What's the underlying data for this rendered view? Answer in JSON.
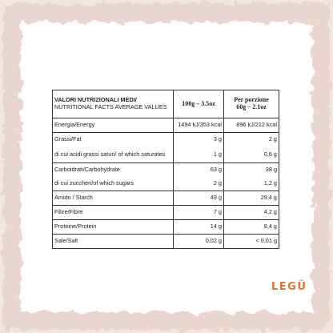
{
  "table": {
    "header": [
      [
        "VALORI NUTRIZIONALI MEDI/",
        "NUTRITIONAL FACTS AVERAGE VALUES"
      ],
      "100g – 3.5oz",
      [
        "Per porzione",
        "60g – 2.1oz"
      ]
    ],
    "rows": [
      [
        "Energia/Energy",
        "1494 kJ/353 kcal",
        "896 kJ/212 kcal"
      ],
      [
        "Grassi/Fat",
        "3 g",
        "2 g"
      ],
      [
        "di cui acidi grassi saturi/ of which saturates",
        "1 g",
        "0,6 g"
      ],
      [
        "Carboidrati/Carbohydrate",
        "63 g",
        "38 g"
      ],
      [
        "di cui zuccheri/of which sugars",
        "2 g",
        "1,2 g"
      ],
      [
        "Amido / Starch",
        "49 g",
        "29,4 g"
      ],
      [
        "Fibre/Fibre",
        "7 g",
        "4,2 g"
      ],
      [
        "Proteine/Protein",
        "14 g",
        "8,4 g"
      ],
      [
        "Sale/Salt",
        "0,02 g",
        "< 0,01 g"
      ]
    ]
  },
  "brand": "LEGÛ"
}
